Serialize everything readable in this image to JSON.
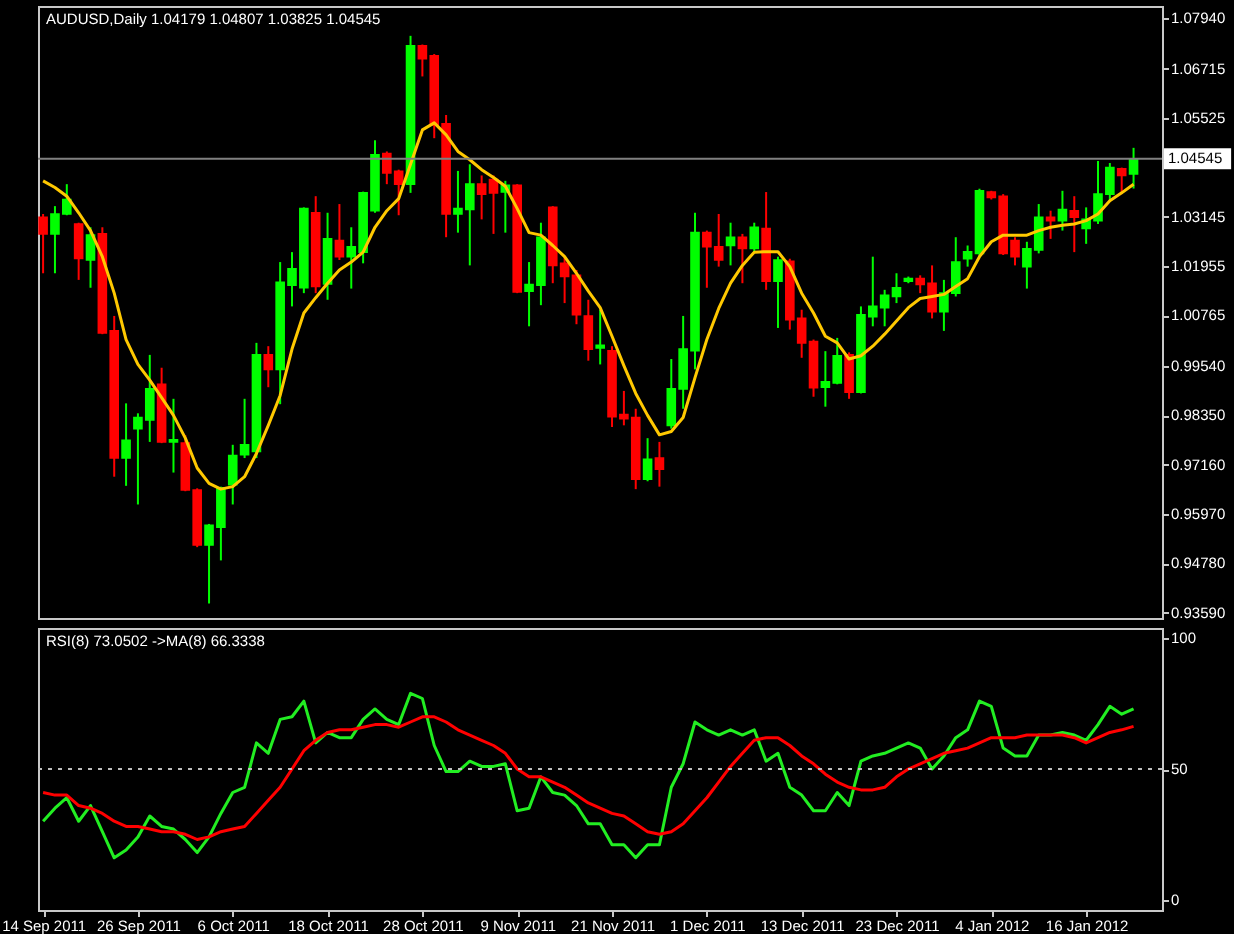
{
  "chart_data": [
    {
      "type": "candlestick",
      "title": "AUDUSD,Daily 1.04179 1.04807 1.03825 1.04545",
      "categories": [
        null,
        null,
        null,
        null,
        null,
        null,
        null,
        null,
        null,
        null,
        null,
        null,
        null,
        null,
        null,
        null,
        null,
        null,
        null,
        null,
        null,
        null,
        null,
        null,
        null,
        null,
        null,
        null,
        null,
        null,
        null,
        null,
        null,
        null,
        null,
        null,
        null,
        null,
        null,
        null,
        null,
        null,
        null,
        null,
        null,
        null,
        null,
        null,
        null,
        null,
        null,
        null,
        null,
        null,
        null,
        null,
        null,
        null,
        null,
        null,
        null,
        null,
        null,
        null,
        null,
        null,
        null,
        null,
        null,
        null,
        null,
        null,
        null,
        null,
        null,
        null,
        null,
        null,
        null,
        null,
        null,
        null,
        null,
        null,
        null,
        null,
        null,
        null,
        null,
        null,
        null,
        null,
        null
      ],
      "ohlc": [
        [
          1.0313,
          1.0321,
          1.0178,
          1.0273
        ],
        [
          1.0273,
          1.034,
          1.0178,
          1.0321
        ],
        [
          1.0321,
          1.0393,
          1.0318,
          1.0356
        ],
        [
          1.0297,
          1.03,
          1.0162,
          1.0214
        ],
        [
          1.021,
          1.0289,
          1.0143,
          1.027
        ],
        [
          1.0273,
          1.0289,
          1.0031,
          1.0034
        ],
        [
          1.0039,
          1.0075,
          0.9687,
          0.9732
        ],
        [
          0.9732,
          0.9864,
          0.9665,
          0.9775
        ],
        [
          0.9803,
          0.984,
          0.962,
          0.983
        ],
        [
          0.9824,
          0.9981,
          0.9771,
          0.9899
        ],
        [
          0.991,
          0.995,
          0.9768,
          0.9771
        ],
        [
          0.9771,
          0.9875,
          0.9697,
          0.9776
        ],
        [
          0.9768,
          0.9787,
          0.9652,
          0.9655
        ],
        [
          0.9655,
          0.9659,
          0.9517,
          0.9522
        ],
        [
          0.9522,
          0.9573,
          0.9381,
          0.957
        ],
        [
          0.9565,
          0.9663,
          0.9485,
          0.966
        ],
        [
          0.9668,
          0.9764,
          0.962,
          0.9738
        ],
        [
          0.974,
          0.9875,
          0.9732,
          0.9764
        ],
        [
          0.9748,
          1.001,
          0.9732,
          0.9981
        ],
        [
          0.9981,
          1.0002,
          0.9903,
          0.9946
        ],
        [
          0.9946,
          1.0205,
          0.9862,
          1.0156
        ],
        [
          1.0149,
          1.0229,
          1.0098,
          1.0189
        ],
        [
          1.0143,
          1.0337,
          1.013,
          1.0334
        ],
        [
          1.0324,
          1.0364,
          1.013,
          1.0146
        ],
        [
          1.0152,
          1.0324,
          1.0114,
          1.0261
        ],
        [
          1.0257,
          1.0345,
          1.021,
          1.0218
        ],
        [
          1.0218,
          1.0289,
          1.0141,
          1.0242
        ],
        [
          1.0229,
          1.0375,
          1.0202,
          1.0372
        ],
        [
          1.0329,
          1.0499,
          1.0324,
          1.0464
        ],
        [
          1.0467,
          1.0472,
          1.0393,
          1.042
        ],
        [
          1.0424,
          1.0428,
          1.0318,
          1.0393
        ],
        [
          1.0393,
          1.0751,
          1.0372,
          1.0727
        ],
        [
          1.0727,
          1.073,
          1.0653,
          1.0696
        ],
        [
          1.0703,
          1.0707,
          1.0504,
          1.0536
        ],
        [
          1.0539,
          1.056,
          1.0265,
          1.0321
        ],
        [
          1.0321,
          1.0425,
          1.0276,
          1.0334
        ],
        [
          1.0332,
          1.0441,
          1.0197,
          1.0393
        ],
        [
          1.0393,
          1.0414,
          1.0308,
          1.0369
        ],
        [
          1.0404,
          1.0414,
          1.0273,
          1.0372
        ],
        [
          1.0374,
          1.0401,
          1.0276,
          1.039
        ],
        [
          1.039,
          1.0393,
          1.013,
          1.0133
        ],
        [
          1.0135,
          1.0205,
          1.005,
          1.0151
        ],
        [
          1.0149,
          1.03,
          1.0101,
          1.0265
        ],
        [
          1.0337,
          1.034,
          1.0154,
          1.0197
        ],
        [
          1.0202,
          1.0218,
          1.0106,
          1.017
        ],
        [
          1.0173,
          1.0186,
          1.0055,
          1.0078
        ],
        [
          1.0075,
          1.0114,
          0.9967,
          0.9995
        ],
        [
          0.9998,
          1.009,
          0.9958,
          1.0004
        ],
        [
          0.9991,
          1.0002,
          0.9807,
          0.9832
        ],
        [
          0.9837,
          0.9894,
          0.9811,
          0.9827
        ],
        [
          0.983,
          0.9851,
          0.9657,
          0.9681
        ],
        [
          0.9681,
          0.978,
          0.9676,
          0.9729
        ],
        [
          0.9732,
          0.9771,
          0.9663,
          0.9705
        ],
        [
          0.9811,
          0.9971,
          0.9803,
          0.9899
        ],
        [
          0.9899,
          1.0075,
          0.9851,
          0.9995
        ],
        [
          0.9991,
          1.0324,
          0.9946,
          1.0276
        ],
        [
          1.0276,
          1.0281,
          1.0143,
          1.0242
        ],
        [
          1.0242,
          1.0321,
          1.0194,
          1.021
        ],
        [
          1.0245,
          1.03,
          1.0197,
          1.0265
        ],
        [
          1.0265,
          1.0273,
          1.0154,
          1.0238
        ],
        [
          1.0238,
          1.03,
          1.0229,
          1.0289
        ],
        [
          1.0286,
          1.0374,
          1.0138,
          1.0159
        ],
        [
          1.0159,
          1.0218,
          1.0046,
          1.021
        ],
        [
          1.0207,
          1.0213,
          1.0042,
          1.0066
        ],
        [
          1.0069,
          1.009,
          0.9974,
          1.001
        ],
        [
          1.0013,
          1.0018,
          0.988,
          0.9902
        ],
        [
          0.9903,
          0.999,
          0.9856,
          0.9916
        ],
        [
          0.9913,
          1.0022,
          0.991,
          0.9979
        ],
        [
          0.9981,
          0.9987,
          0.9875,
          0.9891
        ],
        [
          0.9891,
          1.0098,
          0.9888,
          1.0078
        ],
        [
          1.0073,
          1.0218,
          1.005,
          1.0098
        ],
        [
          1.0095,
          1.0138,
          1.005,
          1.0125
        ],
        [
          1.0122,
          1.0178,
          1.0106,
          1.0143
        ],
        [
          1.0159,
          1.017,
          1.0154,
          1.0165
        ],
        [
          1.0165,
          1.0173,
          1.013,
          1.0151
        ],
        [
          1.0154,
          1.0197,
          1.0069,
          1.0085
        ],
        [
          1.0085,
          1.0162,
          1.0039,
          1.013
        ],
        [
          1.013,
          1.0265,
          1.0122,
          1.0205
        ],
        [
          1.0213,
          1.0245,
          1.0194,
          1.023
        ],
        [
          1.0226,
          1.0382,
          1.0218,
          1.0377
        ],
        [
          1.0374,
          1.0377,
          1.0356,
          1.0361
        ],
        [
          1.0364,
          1.0369,
          1.0222,
          1.0226
        ],
        [
          1.0257,
          1.0265,
          1.0197,
          1.0218
        ],
        [
          1.0194,
          1.0254,
          1.0141,
          1.0237
        ],
        [
          1.0234,
          1.0345,
          1.0226,
          1.0313
        ],
        [
          1.0313,
          1.0329,
          1.0261,
          1.0305
        ],
        [
          1.0305,
          1.0377,
          1.0281,
          1.0332
        ],
        [
          1.0329,
          1.0364,
          1.0229,
          1.0313
        ],
        [
          1.0286,
          1.0337,
          1.0249,
          1.0308
        ],
        [
          1.0305,
          1.0449,
          1.0297,
          1.0369
        ],
        [
          1.0369,
          1.0444,
          1.0353,
          1.0433
        ],
        [
          1.043,
          1.0433,
          1.0369,
          1.0414
        ],
        [
          1.04179,
          1.04807,
          1.03825,
          1.04545
        ]
      ],
      "colors": [
        "#ff0000",
        "#00ff00",
        "#00ff00",
        "#ff0000",
        "#00ff00",
        "#ff0000",
        "#ff0000",
        "#00ff00",
        "#00ff00",
        "#00ff00",
        "#ff0000",
        "#00ff00",
        "#ff0000",
        "#ff0000",
        "#00ff00",
        "#00ff00",
        "#00ff00",
        "#00ff00",
        "#00ff00",
        "#ff0000",
        "#00ff00",
        "#00ff00",
        "#00ff00",
        "#ff0000",
        "#00ff00",
        "#ff0000",
        "#00ff00",
        "#00ff00",
        "#00ff00",
        "#ff0000",
        "#ff0000",
        "#00ff00",
        "#ff0000",
        "#ff0000",
        "#ff0000",
        "#00ff00",
        "#00ff00",
        "#ff0000",
        "#ff0000",
        "#00ff00",
        "#ff0000",
        "#00ff00",
        "#00ff00",
        "#ff0000",
        "#ff0000",
        "#ff0000",
        "#ff0000",
        "#00ff00",
        "#ff0000",
        "#ff0000",
        "#ff0000",
        "#00ff00",
        "#ff0000",
        "#00ff00",
        "#00ff00",
        "#00ff00",
        "#ff0000",
        "#ff0000",
        "#00ff00",
        "#ff0000",
        "#00ff00",
        "#ff0000",
        "#00ff00",
        "#ff0000",
        "#ff0000",
        "#ff0000",
        "#00ff00",
        "#00ff00",
        "#ff0000",
        "#00ff00",
        "#00ff00",
        "#00ff00",
        "#00ff00",
        "#00ff00",
        "#ff0000",
        "#ff0000",
        "#00ff00",
        "#00ff00",
        "#00ff00",
        "#00ff00",
        "#ff0000",
        "#ff0000",
        "#ff0000",
        "#00ff00",
        "#00ff00",
        "#ff0000",
        "#00ff00",
        "#ff0000",
        "#00ff00",
        "#00ff00",
        "#00ff00",
        "#ff0000",
        "#00ff00"
      ],
      "series": [
        {
          "type": "line",
          "color": "#ffc800",
          "values": [
            1.0401,
            1.0385,
            1.0364,
            1.0324,
            1.0281,
            1.0218,
            1.013,
            1.0018,
            0.9958,
            0.992,
            0.9878,
            0.9835,
            0.978,
            0.9708,
            0.9671,
            0.9657,
            0.9663,
            0.9687,
            0.9743,
            0.9811,
            0.9883,
            0.9995,
            1.0082,
            1.0119,
            1.0154,
            1.0186,
            1.0205,
            1.0229,
            1.0289,
            1.0329,
            1.0358,
            1.0441,
            1.0524,
            1.0541,
            1.0512,
            1.0472,
            1.0452,
            1.0428,
            1.0409,
            1.0388,
            1.0334,
            1.0276,
            1.027,
            1.0245,
            1.0218,
            1.0178,
            1.0135,
            1.0095,
            1.0026,
            0.9955,
            0.9888,
            0.9835,
            0.9788,
            0.9796,
            0.983,
            0.9926,
            1.0018,
            1.0093,
            1.0154,
            1.0197,
            1.0229,
            1.023,
            1.023,
            1.0194,
            1.013,
            1.0082,
            1.0026,
            1.001,
            0.9971,
            0.9979,
            1.0002,
            1.0031,
            1.0063,
            1.0095,
            1.0117,
            1.0122,
            1.0127,
            1.0146,
            1.0165,
            1.0218,
            1.0254,
            1.027,
            1.027,
            1.027,
            1.0281,
            1.0289,
            1.0294,
            1.0297,
            1.0305,
            1.0321,
            1.0353,
            1.0372,
            1.0393
          ]
        }
      ],
      "ylim": [
        0.9346,
        1.0823
      ],
      "yticks": [
        {
          "value": 1.0794,
          "label": "1.07940"
        },
        {
          "value": 1.06715,
          "label": "1.06715"
        },
        {
          "value": 1.05525,
          "label": "1.05525"
        },
        {
          "value": 1.03145,
          "label": "1.03145"
        },
        {
          "value": 1.01955,
          "label": "1.01955"
        },
        {
          "value": 1.00765,
          "label": "1.00765"
        },
        {
          "value": 0.9954,
          "label": "0.99540"
        },
        {
          "value": 0.9835,
          "label": "0.98350"
        },
        {
          "value": 0.9716,
          "label": "0.97160"
        },
        {
          "value": 0.9597,
          "label": "0.95970"
        },
        {
          "value": 0.9478,
          "label": "0.94780"
        },
        {
          "value": 0.9359,
          "label": "0.93590"
        }
      ],
      "ref_lines": [
        {
          "axis": "y",
          "value": 1.04545,
          "label": "1.04545",
          "color": "#808080"
        }
      ],
      "tick_labels": "y"
    },
    {
      "type": "line",
      "title": "RSI(8) 73.0502 ->MA(8) 66.3338",
      "categories": [
        "14 Sep 2011",
        null,
        null,
        null,
        null,
        null,
        null,
        null,
        "26 Sep 2011",
        null,
        null,
        null,
        null,
        null,
        null,
        null,
        "6 Oct 2011",
        null,
        null,
        null,
        null,
        null,
        null,
        null,
        "18 Oct 2011",
        null,
        null,
        null,
        null,
        null,
        null,
        null,
        "28 Oct 2011",
        null,
        null,
        null,
        null,
        null,
        null,
        null,
        "9 Nov 2011",
        null,
        null,
        null,
        null,
        null,
        null,
        null,
        "21 Nov 2011",
        null,
        null,
        null,
        null,
        null,
        null,
        null,
        "1 Dec 2011",
        null,
        null,
        null,
        null,
        null,
        null,
        null,
        "13 Dec 2011",
        null,
        null,
        null,
        null,
        null,
        null,
        null,
        "23 Dec 2011",
        null,
        null,
        null,
        null,
        null,
        null,
        null,
        "4 Jan 2012",
        null,
        null,
        null,
        null,
        null,
        null,
        null,
        "16 Jan 2012",
        null,
        null,
        null,
        null
      ],
      "series": [
        {
          "color": "#22ee22",
          "values": [
            30,
            35,
            39,
            30,
            36,
            26,
            16,
            19,
            24,
            32,
            28,
            27,
            23,
            18,
            24,
            33,
            41,
            43,
            60,
            56,
            69,
            70,
            76,
            60,
            64,
            62,
            62,
            69,
            73,
            69,
            67,
            79,
            77,
            59,
            49,
            49,
            53,
            51,
            51,
            52,
            34,
            35,
            47,
            41,
            40,
            36,
            29,
            29,
            21,
            21,
            16,
            21,
            21,
            43,
            52,
            68,
            65,
            63,
            65,
            63,
            65,
            53,
            56,
            43,
            40,
            34,
            34,
            41,
            36,
            53,
            55,
            56,
            58,
            60,
            58,
            50,
            55,
            62,
            65,
            76,
            74,
            58,
            55,
            55,
            63,
            63,
            64,
            63,
            61,
            67,
            74,
            71,
            73.0502
          ]
        },
        {
          "color": "#ff0000",
          "values": [
            41,
            40,
            40,
            36,
            35,
            33,
            30,
            28,
            28,
            27,
            26,
            26,
            25,
            23,
            24,
            26,
            27,
            28,
            33,
            38,
            43,
            50,
            57,
            61,
            64,
            65,
            65,
            66,
            67,
            67,
            66,
            68,
            70,
            70,
            68,
            65,
            63,
            61,
            59,
            56,
            50,
            47,
            47,
            45,
            43,
            40,
            37,
            35,
            33,
            32,
            29,
            26,
            25,
            26,
            29,
            34,
            39,
            45,
            51,
            56,
            61,
            62,
            62,
            59,
            55,
            52,
            48,
            45,
            43,
            42,
            42,
            43,
            47,
            50,
            52,
            54,
            56,
            57,
            58,
            60,
            62,
            62,
            62,
            63,
            63,
            63,
            63,
            62,
            60,
            62,
            64,
            65,
            66.3338
          ]
        }
      ],
      "ylim": [
        -4,
        104
      ],
      "yticks": [
        0,
        50,
        100
      ],
      "ref_lines": [
        {
          "axis": "y",
          "value": 50,
          "color": "#c0c0c0",
          "line_style": "dotted"
        }
      ]
    }
  ]
}
